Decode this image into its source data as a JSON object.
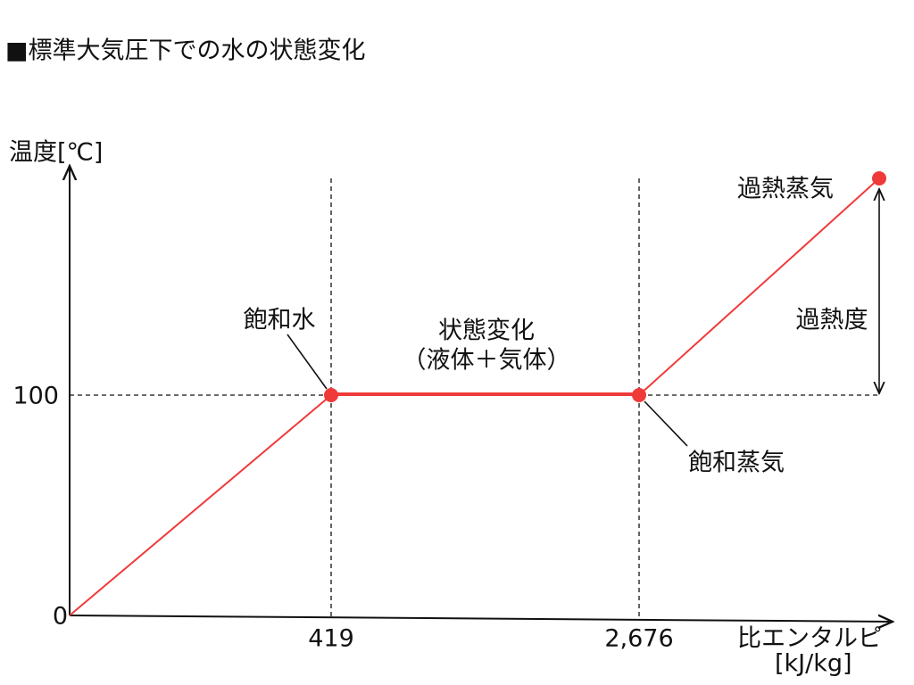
{
  "header": {
    "title": "■標準大気圧下での水の状態変化"
  },
  "y_axis": {
    "label": "温度[℃]",
    "ticks": [
      "100",
      "0"
    ]
  },
  "x_axis": {
    "label": "比エンタルピ",
    "unit": "[kJ/kg]",
    "ticks": [
      "419",
      "2,676"
    ]
  },
  "annotations": {
    "saturated_water": "飽和水",
    "phase_change": "状態変化",
    "phase_change_detail": "（液体＋気体）",
    "saturated_steam": "飽和蒸気",
    "superheated_steam": "過熱蒸気",
    "superheat": "過熱度"
  }
}
